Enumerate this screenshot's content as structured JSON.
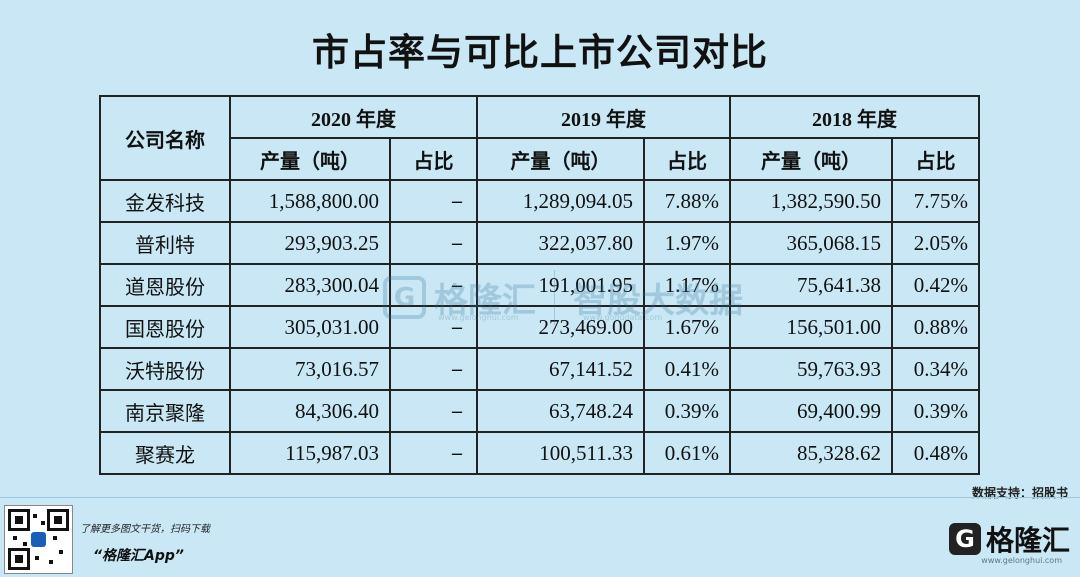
{
  "title": "市占率与可比上市公司对比",
  "table": {
    "company_header": "公司名称",
    "years": [
      "2020 年度",
      "2019 年度",
      "2018 年度"
    ],
    "sub_headers": {
      "output": "产量（吨）",
      "share": "占比"
    },
    "rows": [
      {
        "name": "金发科技",
        "y2020_output": "1,588,800.00",
        "y2020_share": "–",
        "y2019_output": "1,289,094.05",
        "y2019_share": "7.88%",
        "y2018_output": "1,382,590.50",
        "y2018_share": "7.75%"
      },
      {
        "name": "普利特",
        "y2020_output": "293,903.25",
        "y2020_share": "–",
        "y2019_output": "322,037.80",
        "y2019_share": "1.97%",
        "y2018_output": "365,068.15",
        "y2018_share": "2.05%"
      },
      {
        "name": "道恩股份",
        "y2020_output": "283,300.04",
        "y2020_share": "–",
        "y2019_output": "191,001.95",
        "y2019_share": "1.17%",
        "y2018_output": "75,641.38",
        "y2018_share": "0.42%"
      },
      {
        "name": "国恩股份",
        "y2020_output": "305,031.00",
        "y2020_share": "–",
        "y2019_output": "273,469.00",
        "y2019_share": "1.67%",
        "y2018_output": "156,501.00",
        "y2018_share": "0.88%"
      },
      {
        "name": "沃特股份",
        "y2020_output": "73,016.57",
        "y2020_share": "–",
        "y2019_output": "67,141.52",
        "y2019_share": "0.41%",
        "y2018_output": "59,763.93",
        "y2018_share": "0.34%"
      },
      {
        "name": "南京聚隆",
        "y2020_output": "84,306.40",
        "y2020_share": "–",
        "y2019_output": "63,748.24",
        "y2019_share": "0.39%",
        "y2018_output": "69,400.99",
        "y2018_share": "0.39%"
      },
      {
        "name": "聚赛龙",
        "y2020_output": "115,987.03",
        "y2020_share": "–",
        "y2019_output": "100,511.33",
        "y2019_share": "0.61%",
        "y2018_output": "85,328.62",
        "y2018_share": "0.48%"
      }
    ]
  },
  "source": "数据支持：招股书",
  "footer": {
    "download_text": "了解更多图文干货，扫码下载",
    "app_name": "“格隆汇App”",
    "brand_name": "格隆汇",
    "brand_logo": "G",
    "brand_url": "www.gelonghui.com"
  },
  "watermark": {
    "logo": "G",
    "brand": "格隆汇",
    "partner": "智股大数据",
    "url": "www.gelonghui.com",
    "url2": "www.gogudata.com"
  },
  "colors": {
    "background": "#c9e7f4",
    "text": "#111111",
    "watermark": "#2d6f96"
  }
}
